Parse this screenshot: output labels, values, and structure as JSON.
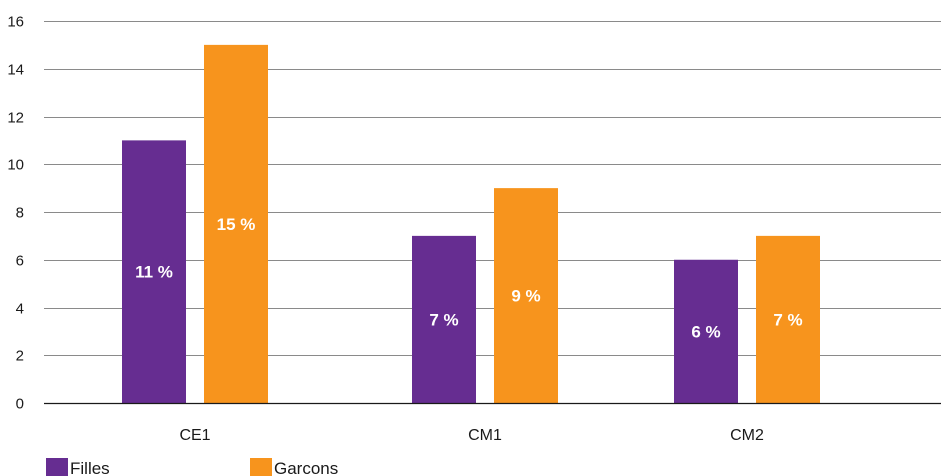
{
  "chart_data": {
    "type": "bar",
    "categories": [
      "CE1",
      "CM1",
      "CM2"
    ],
    "series": [
      {
        "name": "Filles",
        "values": [
          11,
          7,
          6
        ],
        "labels": [
          "11 %",
          "7 %",
          "6 %"
        ],
        "color": "#662d91"
      },
      {
        "name": "Garcons",
        "values": [
          15,
          9,
          7
        ],
        "labels": [
          "15 %",
          "9 %",
          "7 %"
        ],
        "color": "#f7941d"
      }
    ],
    "yticks": [
      0,
      2,
      4,
      6,
      8,
      10,
      12,
      14,
      16
    ],
    "ylim": [
      0,
      16
    ],
    "grid": true,
    "legend_position": "bottom-left",
    "gridline_color": "#8a8a8a"
  }
}
